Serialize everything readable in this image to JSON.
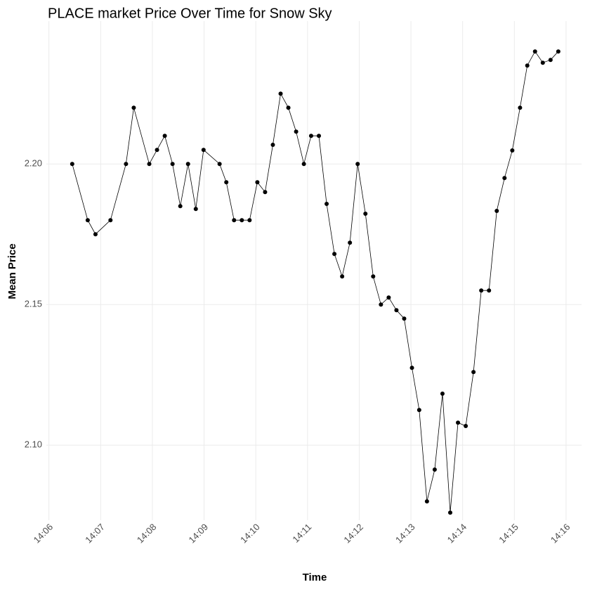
{
  "chart_data": {
    "type": "line",
    "title": "PLACE market Price Over Time for Snow Sky",
    "x_label": "Time",
    "y_label": "Mean Price",
    "series": [
      {
        "color": "#000000",
        "x": [
          846.45,
          846.75,
          846.9,
          847.19,
          847.49,
          847.64,
          847.94,
          848.09,
          848.24,
          848.39,
          848.54,
          848.69,
          848.84,
          848.99,
          849.3,
          849.43,
          849.58,
          849.73,
          849.88,
          850.03,
          850.18,
          850.33,
          850.48,
          850.63,
          850.78,
          850.93,
          851.07,
          851.22,
          851.37,
          851.52,
          851.67,
          851.82,
          851.97,
          852.12,
          852.27,
          852.42,
          852.57,
          852.72,
          852.87,
          853.02,
          853.16,
          853.31,
          853.46,
          853.61,
          853.76,
          853.91,
          854.06,
          854.21,
          854.36,
          854.51,
          854.66,
          854.81,
          854.96,
          855.11,
          855.25,
          855.4,
          855.55,
          855.7,
          855.85
        ],
        "values": [
          2.2,
          2.18,
          2.175,
          2.18,
          2.2,
          2.22,
          2.2,
          2.205,
          2.21,
          2.2,
          2.185,
          2.2,
          2.184,
          2.205,
          2.2,
          2.1935,
          2.18,
          2.18,
          2.18,
          2.1935,
          2.19,
          2.2068,
          2.225,
          2.22,
          2.2115,
          2.2,
          2.21,
          2.21,
          2.1858,
          2.168,
          2.16,
          2.172,
          2.2,
          2.1823,
          2.16,
          2.15,
          2.1525,
          2.148,
          2.145,
          2.1275,
          2.1125,
          2.08,
          2.0913,
          2.1183,
          2.076,
          2.108,
          2.1068,
          2.126,
          2.155,
          2.155,
          2.1833,
          2.195,
          2.2048,
          2.22,
          2.235,
          2.24,
          2.236,
          2.237,
          2.24
        ]
      }
    ],
    "xlim": [
      845.95,
      856.3
    ],
    "xticks": [
      {
        "value": 846,
        "label": "14:06"
      },
      {
        "value": 847,
        "label": "14:07"
      },
      {
        "value": 848,
        "label": "14:08"
      },
      {
        "value": 849,
        "label": "14:09"
      },
      {
        "value": 850,
        "label": "14:10"
      },
      {
        "value": 851,
        "label": "14:11"
      },
      {
        "value": 852,
        "label": "14:12"
      },
      {
        "value": 853,
        "label": "14:13"
      },
      {
        "value": 854,
        "label": "14:14"
      },
      {
        "value": 855,
        "label": "14:15"
      },
      {
        "value": 856,
        "label": "14:16"
      }
    ],
    "ylim": [
      2.0733,
      2.2508
    ],
    "yticks": [
      {
        "value": 2.1,
        "label": "2.10"
      },
      2.15,
      {
        "value": 2.2,
        "label": "2.20"
      }
    ],
    "grid": true
  }
}
